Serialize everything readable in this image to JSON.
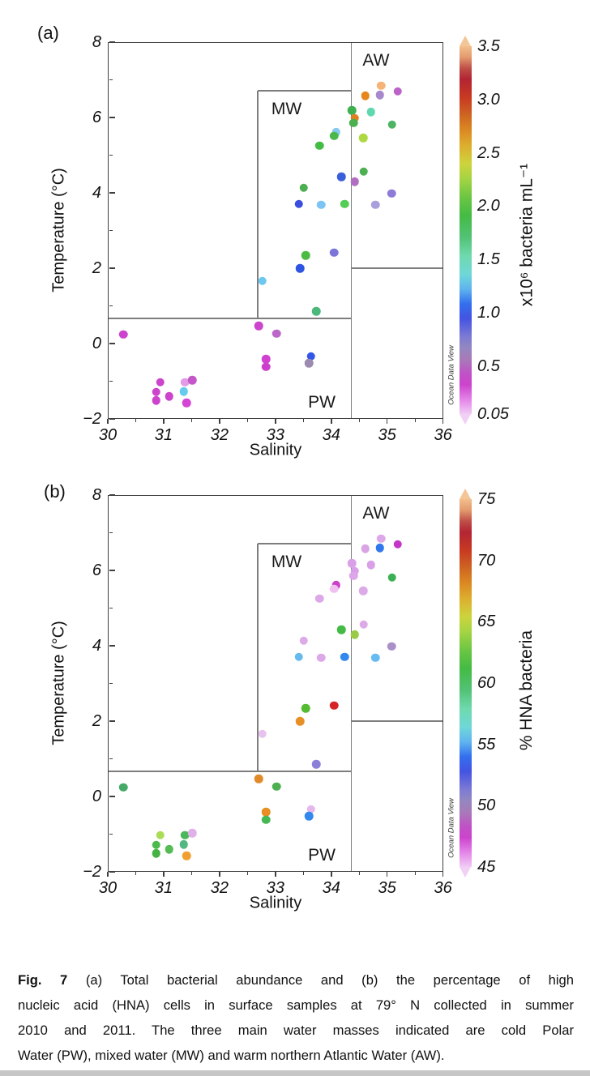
{
  "figure": {
    "panel_labels": {
      "a": "(a)",
      "b": "(b)"
    },
    "credit": "Ocean Data View",
    "caption": {
      "lead": "Fig. 7",
      "lines": [
        " (a) Total bacterial abundance and (b) the percentage of high",
        "nucleic acid (HNA) cells in surface samples at 79° N collected in summer",
        "2010 and 2011. The three main water masses indicated are cold Polar",
        "Water (PW), mixed water (MW) and warm northern Atlantic Water (AW)."
      ]
    }
  },
  "chart_data": [
    {
      "type": "scatter",
      "panel": "a",
      "title": "Total bacterial abundance",
      "xlabel": "Salinity",
      "ylabel": "Temperature (°C)",
      "xlim": [
        30,
        36
      ],
      "ylim": [
        -2,
        8
      ],
      "x_ticks": [
        30,
        31,
        32,
        33,
        34,
        35,
        36
      ],
      "y_ticks": [
        8,
        6,
        4,
        2,
        0,
        -2
      ],
      "grid": false,
      "colorbar": {
        "label": "x10⁶ bacteria mL⁻¹",
        "tick_labels": [
          "3.5",
          "3.0",
          "2.5",
          "2.0",
          "1.5",
          "1.0",
          "0.5",
          "0.05"
        ],
        "min": 0.05,
        "max": 3.5
      },
      "water_masses": [
        {
          "label": "AW",
          "s": 34.8,
          "t": 7.5
        },
        {
          "label": "MW",
          "s": 33.2,
          "t": 6.22
        },
        {
          "label": "PW",
          "s": 33.83,
          "t": -1.57
        }
      ],
      "boxes": {
        "front_s": 34.36,
        "mw_s_min": 32.68,
        "mw_t_min": 0.67,
        "mw_t_max": 6.71,
        "aw_floor_t": 2.0,
        "pw_ceiling_t": 0.67
      },
      "points": [
        {
          "s": 34.89,
          "t": 6.84,
          "v": 3.45,
          "c": "#F5B378"
        },
        {
          "s": 34.87,
          "t": 6.6,
          "v": 0.35,
          "c": "#A788CC"
        },
        {
          "s": 35.19,
          "t": 6.69,
          "v": 0.3,
          "c": "#BB63C8"
        },
        {
          "s": 34.61,
          "t": 6.58,
          "v": 2.6,
          "c": "#E8861E"
        },
        {
          "s": 34.37,
          "t": 6.19,
          "v": 1.6,
          "c": "#3FAF4F"
        },
        {
          "s": 34.71,
          "t": 6.15,
          "v": 1.1,
          "c": "#5FD8B0"
        },
        {
          "s": 34.42,
          "t": 5.98,
          "v": 2.55,
          "c": "#E07F1F"
        },
        {
          "s": 34.4,
          "t": 5.85,
          "v": 1.6,
          "c": "#4CAF50"
        },
        {
          "s": 35.09,
          "t": 5.81,
          "v": 1.4,
          "c": "#4CB464"
        },
        {
          "s": 34.09,
          "t": 5.61,
          "v": 0.85,
          "c": "#85C8F0"
        },
        {
          "s": 34.05,
          "t": 5.51,
          "v": 1.6,
          "c": "#4CB84C"
        },
        {
          "s": 34.57,
          "t": 5.46,
          "v": 2.1,
          "c": "#AED943"
        },
        {
          "s": 33.79,
          "t": 5.25,
          "v": 1.65,
          "c": "#44BB44"
        },
        {
          "s": 34.58,
          "t": 4.56,
          "v": 1.6,
          "c": "#4CAF50"
        },
        {
          "s": 34.18,
          "t": 4.43,
          "v": 0.6,
          "c": "#3A5FDB"
        },
        {
          "s": 34.42,
          "t": 4.3,
          "v": 0.3,
          "c": "#B06FC0"
        },
        {
          "s": 33.51,
          "t": 4.13,
          "v": 1.6,
          "c": "#4CAF50"
        },
        {
          "s": 35.08,
          "t": 3.98,
          "v": 0.45,
          "c": "#8E7BD8"
        },
        {
          "s": 33.42,
          "t": 3.7,
          "v": 0.55,
          "c": "#3A4FE0"
        },
        {
          "s": 33.82,
          "t": 3.68,
          "v": 0.85,
          "c": "#7CC4F4"
        },
        {
          "s": 34.24,
          "t": 3.7,
          "v": 1.7,
          "c": "#55CC55"
        },
        {
          "s": 34.79,
          "t": 3.68,
          "v": 0.4,
          "c": "#A89FDC"
        },
        {
          "s": 33.54,
          "t": 2.34,
          "v": 1.65,
          "c": "#4CBB44"
        },
        {
          "s": 34.05,
          "t": 2.41,
          "v": 0.48,
          "c": "#7B76D8"
        },
        {
          "s": 33.44,
          "t": 2.0,
          "v": 0.58,
          "c": "#2E55E0"
        },
        {
          "s": 32.77,
          "t": 1.66,
          "v": 0.85,
          "c": "#6CC8F0"
        },
        {
          "s": 33.73,
          "t": 0.86,
          "v": 1.35,
          "c": "#4CB87C"
        },
        {
          "s": 32.7,
          "t": 0.47,
          "v": 0.25,
          "c": "#CC44CC"
        },
        {
          "s": 30.28,
          "t": 0.24,
          "v": 0.25,
          "c": "#CC44CC"
        },
        {
          "s": 33.02,
          "t": 0.26,
          "v": 0.3,
          "c": "#BB66C8"
        },
        {
          "s": 32.83,
          "t": -0.41,
          "v": 0.25,
          "c": "#D041D0"
        },
        {
          "s": 32.83,
          "t": -0.62,
          "v": 0.25,
          "c": "#CC3FCC"
        },
        {
          "s": 33.64,
          "t": -0.34,
          "v": 0.57,
          "c": "#3355E8"
        },
        {
          "s": 33.6,
          "t": -0.52,
          "v": 0.4,
          "c": "#9B8BB0"
        },
        {
          "s": 30.94,
          "t": -1.03,
          "v": 0.25,
          "c": "#CC44CC"
        },
        {
          "s": 31.38,
          "t": -1.03,
          "v": 0.15,
          "c": "#E39BE8"
        },
        {
          "s": 31.51,
          "t": -0.97,
          "v": 0.28,
          "c": "#C457C8"
        },
        {
          "s": 30.87,
          "t": -1.29,
          "v": 0.25,
          "c": "#CC44CC"
        },
        {
          "s": 31.36,
          "t": -1.27,
          "v": 0.9,
          "c": "#66CCEE"
        },
        {
          "s": 31.1,
          "t": -1.4,
          "v": 0.25,
          "c": "#CC44CC"
        },
        {
          "s": 30.87,
          "t": -1.51,
          "v": 0.25,
          "c": "#CC44CC"
        },
        {
          "s": 31.41,
          "t": -1.57,
          "v": 0.25,
          "c": "#D545D5"
        }
      ]
    },
    {
      "type": "scatter",
      "panel": "b",
      "title": "Percentage of high nucleic acid (HNA) cells",
      "xlabel": "Salinity",
      "ylabel": "Temperature (°C)",
      "xlim": [
        30,
        36
      ],
      "ylim": [
        -2,
        8
      ],
      "x_ticks": [
        30,
        31,
        32,
        33,
        34,
        35,
        36
      ],
      "y_ticks": [
        8,
        6,
        4,
        2,
        0,
        -2
      ],
      "grid": false,
      "colorbar": {
        "label": "% HNA bacteria",
        "tick_labels": [
          "75",
          "70",
          "65",
          "60",
          "55",
          "50",
          "45"
        ],
        "min": 45,
        "max": 75
      },
      "water_masses": [
        {
          "label": "AW",
          "s": 34.8,
          "t": 7.5
        },
        {
          "label": "MW",
          "s": 33.2,
          "t": 6.22
        },
        {
          "label": "PW",
          "s": 33.83,
          "t": -1.57
        }
      ],
      "boxes": {
        "front_s": 34.36,
        "mw_s_min": 32.68,
        "mw_t_min": 0.67,
        "mw_t_max": 6.71,
        "aw_floor_t": 2.0,
        "pw_ceiling_t": 0.67
      },
      "points": [
        {
          "s": 34.89,
          "t": 6.84,
          "v": 46.0,
          "c": "#DDA8E8"
        },
        {
          "s": 34.87,
          "t": 6.6,
          "v": 51.0,
          "c": "#3377EE"
        },
        {
          "s": 35.19,
          "t": 6.69,
          "v": 46.5,
          "c": "#C435C8"
        },
        {
          "s": 34.61,
          "t": 6.58,
          "v": 46.0,
          "c": "#D9A6E3"
        },
        {
          "s": 34.37,
          "t": 6.19,
          "v": 46.0,
          "c": "#D9A0E8"
        },
        {
          "s": 34.71,
          "t": 6.15,
          "v": 46.0,
          "c": "#D9A0E8"
        },
        {
          "s": 34.42,
          "t": 5.98,
          "v": 46.0,
          "c": "#D9A0E8"
        },
        {
          "s": 34.4,
          "t": 5.85,
          "v": 46.0,
          "c": "#DCA6E8"
        },
        {
          "s": 35.09,
          "t": 5.81,
          "v": 56.5,
          "c": "#3CB054"
        },
        {
          "s": 34.09,
          "t": 5.61,
          "v": 47.0,
          "c": "#CC3FC8"
        },
        {
          "s": 34.05,
          "t": 5.51,
          "v": 45.5,
          "c": "#EFC0F0"
        },
        {
          "s": 34.57,
          "t": 5.46,
          "v": 46.0,
          "c": "#DDAAE8"
        },
        {
          "s": 33.79,
          "t": 5.25,
          "v": 46.0,
          "c": "#DDA8E8"
        },
        {
          "s": 34.58,
          "t": 4.56,
          "v": 46.0,
          "c": "#DDAAE8"
        },
        {
          "s": 34.18,
          "t": 4.43,
          "v": 57.5,
          "c": "#44BB44"
        },
        {
          "s": 34.42,
          "t": 4.3,
          "v": 60.0,
          "c": "#99CC44"
        },
        {
          "s": 33.51,
          "t": 4.13,
          "v": 46.0,
          "c": "#DDAAE8"
        },
        {
          "s": 35.08,
          "t": 3.98,
          "v": 48.5,
          "c": "#AA8FC8"
        },
        {
          "s": 33.42,
          "t": 3.7,
          "v": 52.0,
          "c": "#66BBEE"
        },
        {
          "s": 33.82,
          "t": 3.68,
          "v": 46.0,
          "c": "#DDA8E8"
        },
        {
          "s": 34.24,
          "t": 3.7,
          "v": 51.0,
          "c": "#3388EE"
        },
        {
          "s": 34.79,
          "t": 3.68,
          "v": 52.0,
          "c": "#66BBF0"
        },
        {
          "s": 33.54,
          "t": 2.34,
          "v": 58.0,
          "c": "#55BB33"
        },
        {
          "s": 34.05,
          "t": 2.41,
          "v": 69.5,
          "c": "#D42428"
        },
        {
          "s": 33.44,
          "t": 2.0,
          "v": 65.0,
          "c": "#E89028"
        },
        {
          "s": 32.77,
          "t": 1.66,
          "v": 45.5,
          "c": "#E7C2EE"
        },
        {
          "s": 33.73,
          "t": 0.86,
          "v": 49.5,
          "c": "#8A80D8"
        },
        {
          "s": 32.7,
          "t": 0.47,
          "v": 65.0,
          "c": "#E08A28"
        },
        {
          "s": 30.28,
          "t": 0.24,
          "v": 56.0,
          "c": "#44AA66"
        },
        {
          "s": 33.02,
          "t": 0.26,
          "v": 57.5,
          "c": "#4CAF50"
        },
        {
          "s": 32.83,
          "t": -0.41,
          "v": 65.0,
          "c": "#E88E22"
        },
        {
          "s": 32.83,
          "t": -0.62,
          "v": 57.0,
          "c": "#44B852"
        },
        {
          "s": 33.64,
          "t": -0.34,
          "v": 45.5,
          "c": "#E4B8EC"
        },
        {
          "s": 33.6,
          "t": -0.52,
          "v": 51.0,
          "c": "#3388EE"
        },
        {
          "s": 30.94,
          "t": -1.03,
          "v": 60.5,
          "c": "#AADD55"
        },
        {
          "s": 31.38,
          "t": -1.03,
          "v": 57.0,
          "c": "#4CB85C"
        },
        {
          "s": 31.51,
          "t": -0.97,
          "v": 46.0,
          "c": "#E0B0E8"
        },
        {
          "s": 30.87,
          "t": -1.29,
          "v": 57.5,
          "c": "#4CBB4C"
        },
        {
          "s": 31.36,
          "t": -1.27,
          "v": 56.0,
          "c": "#52B882"
        },
        {
          "s": 31.1,
          "t": -1.4,
          "v": 57.5,
          "c": "#55BB55"
        },
        {
          "s": 30.87,
          "t": -1.51,
          "v": 57.0,
          "c": "#44B344"
        },
        {
          "s": 31.41,
          "t": -1.57,
          "v": 64.0,
          "c": "#F0A030"
        }
      ]
    }
  ]
}
